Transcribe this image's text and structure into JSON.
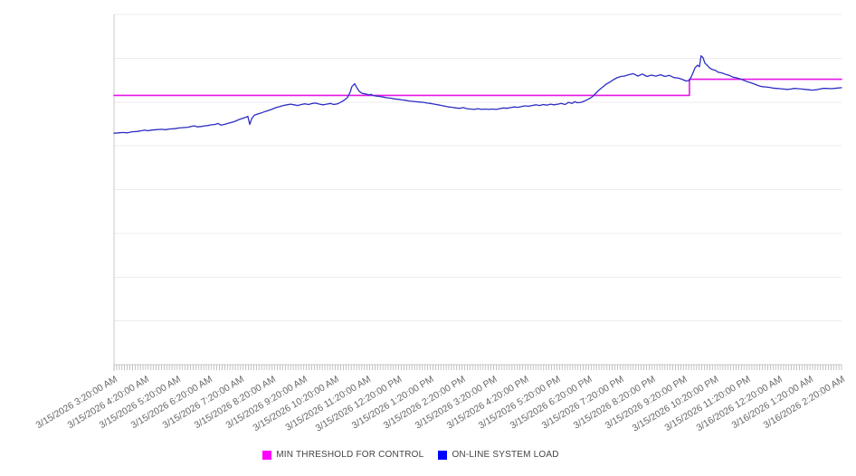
{
  "chart_data": {
    "type": "line",
    "title": "",
    "xlabel": "",
    "ylabel": "",
    "legend_position": "bottom",
    "grid": "horizontal",
    "y_axis": {
      "tick_labels_visible": false,
      "ylim": [
        0,
        100
      ],
      "gridline_count": 9
    },
    "x_axis": {
      "span_hours": 23,
      "minor_tick_interval_minutes": 5,
      "label_rotation_deg": -31,
      "categories": [
        "3/15/2026 3:20:00 AM",
        "3/15/2026 4:20:00 AM",
        "3/15/2026 5:20:00 AM",
        "3/15/2026 6:20:00 AM",
        "3/15/2026 7:20:00 AM",
        "3/15/2026 8:20:00 AM",
        "3/15/2026 9:20:00 AM",
        "3/15/2026 10:20:00 AM",
        "3/15/2026 11:20:00 AM",
        "3/15/2026 12:20:00 PM",
        "3/15/2026 1:20:00 PM",
        "3/15/2026 2:20:00 PM",
        "3/15/2026 3:20:00 PM",
        "3/15/2026 4:20:00 PM",
        "3/15/2026 5:20:00 PM",
        "3/15/2026 6:20:00 PM",
        "3/15/2026 7:20:00 PM",
        "3/15/2026 8:20:00 PM",
        "3/15/2026 9:20:00 PM",
        "3/15/2026 10:20:00 PM",
        "3/15/2026 11:20:00 PM",
        "3/16/2026 12:20:00 AM",
        "3/16/2026 1:20:00 AM",
        "3/16/2026 2:20:00 AM"
      ]
    },
    "series": [
      {
        "name": "MIN THRESHOLD FOR CONTROL",
        "line_color": "#E516E5",
        "legend_color": "#FF00FF",
        "line_width": 1.6,
        "points": [
          [
            0,
            76.9
          ],
          [
            18.19,
            76.9
          ],
          [
            18.19,
            81.5
          ],
          [
            23,
            81.5
          ]
        ]
      },
      {
        "name": "ON-LINE SYSTEM LOAD",
        "line_color": "#2D2DC4",
        "legend_color": "#0000FF",
        "line_width": 1.3,
        "points": [
          [
            0,
            66.1
          ],
          [
            0.14,
            66.2
          ],
          [
            0.29,
            66.3
          ],
          [
            0.43,
            66.2
          ],
          [
            0.57,
            66.5
          ],
          [
            0.72,
            66.6
          ],
          [
            0.86,
            66.8
          ],
          [
            0.97,
            67.0
          ],
          [
            1.06,
            66.8
          ],
          [
            1.2,
            67.0
          ],
          [
            1.34,
            67.1
          ],
          [
            1.49,
            67.2
          ],
          [
            1.63,
            67.1
          ],
          [
            1.77,
            67.3
          ],
          [
            1.92,
            67.4
          ],
          [
            2.06,
            67.6
          ],
          [
            2.2,
            67.7
          ],
          [
            2.35,
            67.8
          ],
          [
            2.46,
            68.1
          ],
          [
            2.55,
            68.2
          ],
          [
            2.63,
            67.9
          ],
          [
            2.75,
            68.0
          ],
          [
            2.86,
            68.2
          ],
          [
            2.97,
            68.3
          ],
          [
            3.09,
            68.5
          ],
          [
            3.2,
            68.6
          ],
          [
            3.29,
            68.9
          ],
          [
            3.38,
            68.4
          ],
          [
            3.49,
            68.6
          ],
          [
            3.6,
            68.9
          ],
          [
            3.72,
            69.2
          ],
          [
            3.83,
            69.5
          ],
          [
            3.95,
            70.0
          ],
          [
            4.06,
            70.3
          ],
          [
            4.15,
            70.6
          ],
          [
            4.23,
            70.9
          ],
          [
            4.29,
            68.6
          ],
          [
            4.35,
            70.2
          ],
          [
            4.43,
            71.2
          ],
          [
            4.55,
            71.6
          ],
          [
            4.66,
            71.9
          ],
          [
            4.78,
            72.3
          ],
          [
            4.89,
            72.6
          ],
          [
            5.01,
            73.0
          ],
          [
            5.12,
            73.4
          ],
          [
            5.24,
            73.7
          ],
          [
            5.35,
            74.0
          ],
          [
            5.47,
            74.2
          ],
          [
            5.58,
            74.4
          ],
          [
            5.69,
            74.2
          ],
          [
            5.81,
            74.0
          ],
          [
            5.92,
            74.3
          ],
          [
            6.04,
            74.5
          ],
          [
            6.15,
            74.3
          ],
          [
            6.27,
            74.6
          ],
          [
            6.38,
            74.7
          ],
          [
            6.5,
            74.4
          ],
          [
            6.61,
            74.2
          ],
          [
            6.72,
            74.4
          ],
          [
            6.84,
            74.6
          ],
          [
            6.95,
            74.3
          ],
          [
            7.07,
            74.5
          ],
          [
            7.18,
            75.0
          ],
          [
            7.29,
            75.6
          ],
          [
            7.38,
            76.3
          ],
          [
            7.47,
            77.9
          ],
          [
            7.52,
            79.4
          ],
          [
            7.61,
            80.2
          ],
          [
            7.67,
            79.2
          ],
          [
            7.75,
            78.1
          ],
          [
            7.84,
            77.5
          ],
          [
            7.95,
            77.3
          ],
          [
            8.07,
            77.0
          ],
          [
            8.13,
            77.2
          ],
          [
            8.18,
            76.9
          ],
          [
            8.3,
            76.7
          ],
          [
            8.41,
            76.6
          ],
          [
            8.52,
            76.4
          ],
          [
            8.64,
            76.2
          ],
          [
            8.75,
            76.1
          ],
          [
            8.87,
            75.9
          ],
          [
            8.98,
            75.8
          ],
          [
            9.1,
            75.6
          ],
          [
            9.21,
            75.5
          ],
          [
            9.33,
            75.3
          ],
          [
            9.44,
            75.2
          ],
          [
            9.55,
            75.1
          ],
          [
            9.67,
            75.0
          ],
          [
            9.78,
            74.9
          ],
          [
            9.9,
            74.7
          ],
          [
            10.01,
            74.6
          ],
          [
            10.13,
            74.4
          ],
          [
            10.24,
            74.2
          ],
          [
            10.36,
            74.0
          ],
          [
            10.47,
            73.8
          ],
          [
            10.58,
            73.6
          ],
          [
            10.7,
            73.5
          ],
          [
            10.81,
            73.3
          ],
          [
            10.93,
            73.2
          ],
          [
            11.04,
            73.4
          ],
          [
            11.16,
            73.1
          ],
          [
            11.27,
            73.0
          ],
          [
            11.39,
            72.9
          ],
          [
            11.5,
            73.1
          ],
          [
            11.62,
            72.9
          ],
          [
            11.73,
            73.0
          ],
          [
            11.85,
            72.9
          ],
          [
            11.96,
            73.0
          ],
          [
            12.08,
            72.9
          ],
          [
            12.19,
            73.1
          ],
          [
            12.31,
            73.3
          ],
          [
            12.42,
            73.2
          ],
          [
            12.54,
            73.4
          ],
          [
            12.65,
            73.6
          ],
          [
            12.77,
            73.5
          ],
          [
            12.88,
            73.7
          ],
          [
            13.0,
            73.9
          ],
          [
            13.11,
            73.8
          ],
          [
            13.22,
            74.0
          ],
          [
            13.34,
            74.2
          ],
          [
            13.45,
            74.0
          ],
          [
            13.57,
            74.3
          ],
          [
            13.68,
            74.1
          ],
          [
            13.8,
            74.4
          ],
          [
            13.91,
            74.2
          ],
          [
            14.03,
            74.4
          ],
          [
            14.14,
            74.6
          ],
          [
            14.26,
            74.3
          ],
          [
            14.37,
            74.9
          ],
          [
            14.48,
            74.6
          ],
          [
            14.56,
            75.1
          ],
          [
            14.65,
            74.8
          ],
          [
            14.76,
            74.9
          ],
          [
            14.88,
            75.3
          ],
          [
            14.99,
            75.8
          ],
          [
            15.07,
            76.2
          ],
          [
            15.13,
            76.6
          ],
          [
            15.22,
            77.4
          ],
          [
            15.33,
            78.4
          ],
          [
            15.45,
            79.3
          ],
          [
            15.56,
            80.1
          ],
          [
            15.68,
            80.7
          ],
          [
            15.79,
            81.4
          ],
          [
            15.9,
            81.9
          ],
          [
            16.02,
            82.3
          ],
          [
            16.13,
            82.4
          ],
          [
            16.27,
            82.8
          ],
          [
            16.42,
            83.1
          ],
          [
            16.56,
            82.4
          ],
          [
            16.7,
            83.0
          ],
          [
            16.85,
            82.3
          ],
          [
            16.99,
            82.7
          ],
          [
            17.13,
            82.4
          ],
          [
            17.28,
            82.8
          ],
          [
            17.42,
            82.3
          ],
          [
            17.56,
            82.6
          ],
          [
            17.7,
            82.0
          ],
          [
            17.85,
            81.8
          ],
          [
            17.96,
            81.5
          ],
          [
            18.08,
            81.0
          ],
          [
            18.19,
            81.2
          ],
          [
            18.28,
            82.8
          ],
          [
            18.37,
            84.8
          ],
          [
            18.45,
            85.5
          ],
          [
            18.51,
            85.1
          ],
          [
            18.56,
            88.2
          ],
          [
            18.62,
            87.7
          ],
          [
            18.68,
            86.1
          ],
          [
            18.74,
            85.6
          ],
          [
            18.82,
            84.8
          ],
          [
            18.91,
            84.3
          ],
          [
            19.0,
            84.1
          ],
          [
            19.11,
            83.5
          ],
          [
            19.22,
            83.3
          ],
          [
            19.34,
            82.9
          ],
          [
            19.45,
            82.6
          ],
          [
            19.57,
            82.1
          ],
          [
            19.68,
            81.9
          ],
          [
            19.8,
            81.6
          ],
          [
            19.91,
            81.2
          ],
          [
            20.02,
            80.8
          ],
          [
            20.14,
            80.5
          ],
          [
            20.25,
            80.1
          ],
          [
            20.37,
            79.7
          ],
          [
            20.48,
            79.4
          ],
          [
            20.6,
            79.3
          ],
          [
            20.71,
            79.2
          ],
          [
            20.82,
            79.0
          ],
          [
            20.94,
            78.9
          ],
          [
            21.05,
            78.8
          ],
          [
            21.17,
            78.7
          ],
          [
            21.28,
            78.6
          ],
          [
            21.4,
            78.7
          ],
          [
            21.51,
            78.9
          ],
          [
            21.62,
            78.8
          ],
          [
            21.74,
            78.7
          ],
          [
            21.85,
            78.6
          ],
          [
            21.97,
            78.5
          ],
          [
            22.08,
            78.4
          ],
          [
            22.2,
            78.5
          ],
          [
            22.31,
            78.7
          ],
          [
            22.42,
            78.9
          ],
          [
            22.54,
            78.9
          ],
          [
            22.65,
            78.8
          ],
          [
            22.77,
            78.9
          ],
          [
            22.88,
            79.0
          ],
          [
            23.0,
            79.1
          ]
        ]
      }
    ]
  },
  "colors": {
    "background": "#FFFFFF",
    "gridline": "#ECECEC",
    "axis_line": "#C9C9C9",
    "tick_mark": "#ABABAB",
    "x_label_text": "#666666",
    "legend_text": "#444444"
  }
}
